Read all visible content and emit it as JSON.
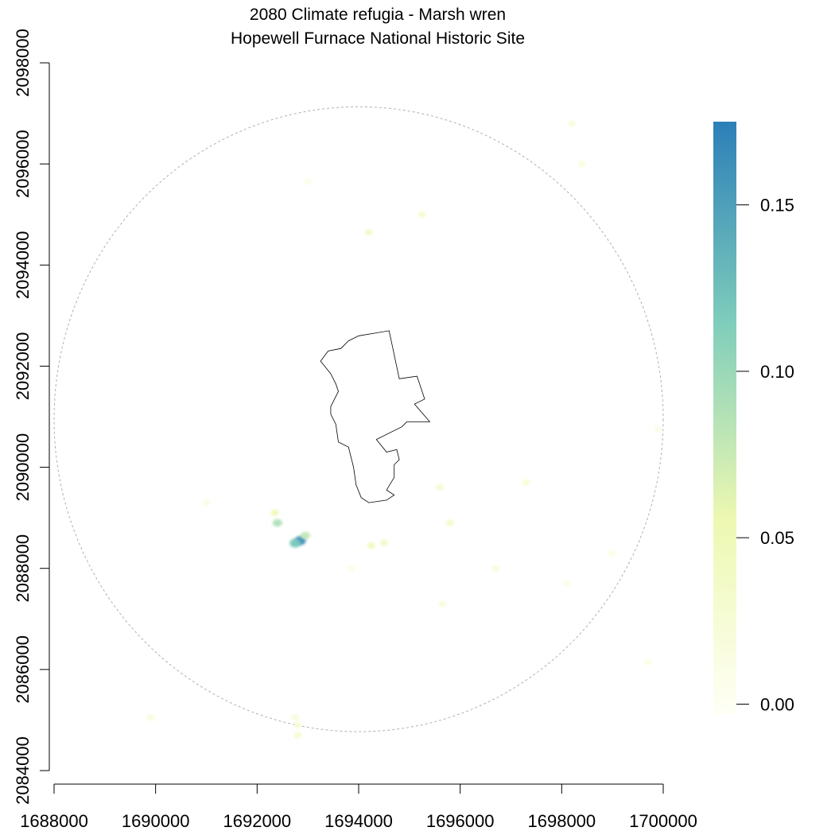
{
  "title": "2080 Climate refugia - Marsh wren",
  "subtitle": "Hopewell Furnace National Historic Site",
  "x_axis": {
    "ticks": [
      "1688000",
      "1690000",
      "1692000",
      "1694000",
      "1696000",
      "1698000",
      "1700000"
    ],
    "range": [
      1688000,
      1700000
    ]
  },
  "y_axis": {
    "ticks": [
      "2084000",
      "2086000",
      "2088000",
      "2090000",
      "2092000",
      "2094000",
      "2096000",
      "2098000"
    ],
    "range": [
      2084000,
      2098000
    ]
  },
  "legend": {
    "ticks": [
      "0.00",
      "0.05",
      "0.10",
      "0.15"
    ],
    "range": [
      -0.003,
      0.175
    ],
    "colors": [
      "#fffff6",
      "#edf8b1",
      "#7fcdbb",
      "#2c7fb8"
    ]
  },
  "refugia_patches": [
    {
      "x": 1692850,
      "y": 2088550,
      "value": 0.165
    },
    {
      "x": 1692750,
      "y": 2088500,
      "value": 0.12
    },
    {
      "x": 1692950,
      "y": 2088650,
      "value": 0.08
    },
    {
      "x": 1692400,
      "y": 2088900,
      "value": 0.09
    },
    {
      "x": 1692350,
      "y": 2089100,
      "value": 0.05
    },
    {
      "x": 1694250,
      "y": 2088450,
      "value": 0.045
    },
    {
      "x": 1694500,
      "y": 2088500,
      "value": 0.04
    },
    {
      "x": 1695800,
      "y": 2088900,
      "value": 0.035
    },
    {
      "x": 1694200,
      "y": 2094650,
      "value": 0.04
    },
    {
      "x": 1695250,
      "y": 2095000,
      "value": 0.03
    },
    {
      "x": 1695600,
      "y": 2089600,
      "value": 0.03
    },
    {
      "x": 1697300,
      "y": 2089700,
      "value": 0.025
    },
    {
      "x": 1692800,
      "y": 2084700,
      "value": 0.03
    },
    {
      "x": 1692750,
      "y": 2085050,
      "value": 0.02
    },
    {
      "x": 1689900,
      "y": 2085050,
      "value": 0.02
    },
    {
      "x": 1698200,
      "y": 2096800,
      "value": 0.02
    },
    {
      "x": 1698400,
      "y": 2096000,
      "value": 0.015
    },
    {
      "x": 1696700,
      "y": 2088000,
      "value": 0.02
    },
    {
      "x": 1695650,
      "y": 2087300,
      "value": 0.02
    },
    {
      "x": 1699000,
      "y": 2088300,
      "value": 0.015
    },
    {
      "x": 1699700,
      "y": 2086150,
      "value": 0.015
    },
    {
      "x": 1699900,
      "y": 2090750,
      "value": 0.012
    },
    {
      "x": 1691000,
      "y": 2089300,
      "value": 0.012
    },
    {
      "x": 1693850,
      "y": 2088000,
      "value": 0.012
    },
    {
      "x": 1698100,
      "y": 2087700,
      "value": 0.01
    },
    {
      "x": 1692800,
      "y": 2084900,
      "value": 0.025
    },
    {
      "x": 1693000,
      "y": 2095650,
      "value": 0.01
    }
  ],
  "park_boundary": [
    [
      1694300,
      2092650
    ],
    [
      1694600,
      2092700
    ],
    [
      1694800,
      2091750
    ],
    [
      1695150,
      2091800
    ],
    [
      1695300,
      2091350
    ],
    [
      1695100,
      2091250
    ],
    [
      1695400,
      2090900
    ],
    [
      1694950,
      2090900
    ],
    [
      1694850,
      2090800
    ],
    [
      1694350,
      2090550
    ],
    [
      1694550,
      2090300
    ],
    [
      1694750,
      2090350
    ],
    [
      1694800,
      2090150
    ],
    [
      1694700,
      2090050
    ],
    [
      1694700,
      2089800
    ],
    [
      1694550,
      2089550
    ],
    [
      1694700,
      2089450
    ],
    [
      1694550,
      2089350
    ],
    [
      1694200,
      2089300
    ],
    [
      1694050,
      2089400
    ],
    [
      1693950,
      2089650
    ],
    [
      1693900,
      2090000
    ],
    [
      1693800,
      2090400
    ],
    [
      1693600,
      2090500
    ],
    [
      1693550,
      2090850
    ],
    [
      1693450,
      2091050
    ],
    [
      1693450,
      2091200
    ],
    [
      1693600,
      2091500
    ],
    [
      1693550,
      2091650
    ],
    [
      1693450,
      2091850
    ],
    [
      1693250,
      2092100
    ],
    [
      1693400,
      2092300
    ],
    [
      1693650,
      2092350
    ],
    [
      1693800,
      2092500
    ],
    [
      1694000,
      2092600
    ]
  ],
  "buffer_radius": 6000,
  "buffer_center": [
    1694000,
    2090950
  ]
}
